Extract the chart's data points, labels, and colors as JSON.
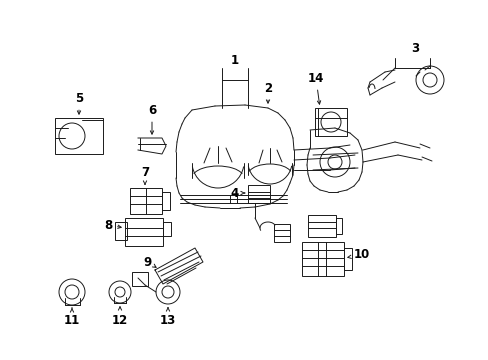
{
  "background_color": "#ffffff",
  "fig_width": 4.89,
  "fig_height": 3.6,
  "dpi": 100,
  "line_color": "#1a1a1a",
  "label_color": "#000000",
  "label_fontsize": 8.5,
  "lw": 0.7
}
